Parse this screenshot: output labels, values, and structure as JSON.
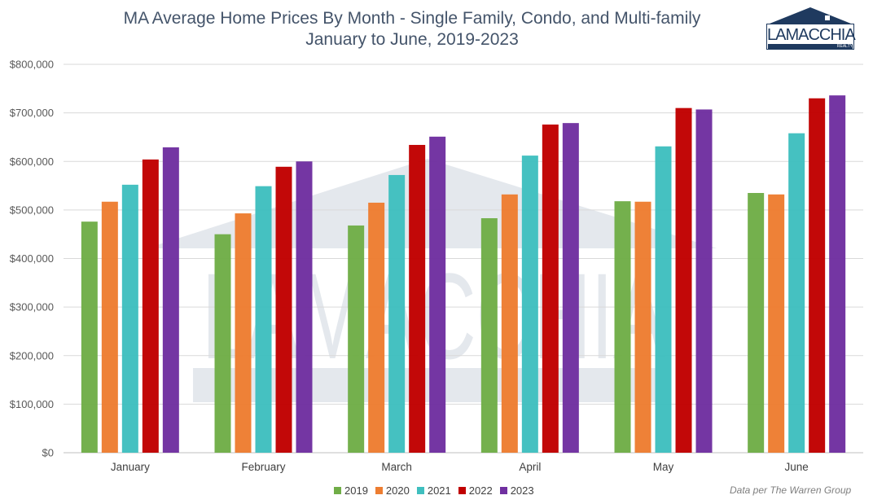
{
  "logo_text": "LAMACCHIA",
  "logo_sub": "REALTY",
  "source_note": "Data per The Warren Group",
  "chart_data": {
    "type": "bar",
    "title": "MA Average Home Prices By Month - Single Family, Condo, and Multi-family",
    "subtitle": "January to June, 2019-2023",
    "categories": [
      "January",
      "February",
      "March",
      "April",
      "May",
      "June"
    ],
    "series": [
      {
        "name": "2019",
        "color": "#70AD47",
        "values": [
          476000,
          450000,
          468000,
          483000,
          518000,
          535000
        ]
      },
      {
        "name": "2020",
        "color": "#ED7D31",
        "values": [
          517000,
          493000,
          515000,
          532000,
          517000,
          532000
        ]
      },
      {
        "name": "2021",
        "color": "#3FBFBF",
        "values": [
          552000,
          549000,
          572000,
          612000,
          631000,
          658000
        ]
      },
      {
        "name": "2022",
        "color": "#C00000",
        "values": [
          604000,
          589000,
          634000,
          676000,
          710000,
          730000
        ]
      },
      {
        "name": "2023",
        "color": "#7030A0",
        "values": [
          629000,
          600000,
          651000,
          679000,
          707000,
          736000
        ]
      }
    ],
    "yticks": [
      "$0",
      "$100,000",
      "$200,000",
      "$300,000",
      "$400,000",
      "$500,000",
      "$600,000",
      "$700,000",
      "$800,000"
    ],
    "ylim": [
      0,
      800000
    ],
    "grid": true,
    "legend_position": "bottom"
  }
}
